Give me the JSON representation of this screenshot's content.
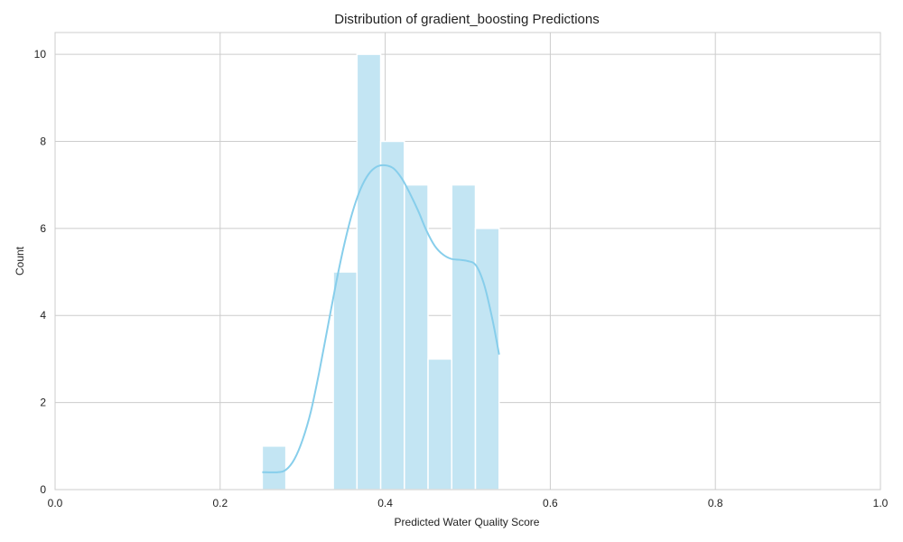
{
  "chart_data": {
    "type": "bar",
    "title": "Distribution of gradient_boosting Predictions",
    "xlabel": "Predicted Water Quality Score",
    "ylabel": "Count",
    "xlim": [
      0.0,
      1.0
    ],
    "ylim": [
      0,
      10.5
    ],
    "x_ticks": [
      "0.0",
      "0.2",
      "0.4",
      "0.6",
      "0.8",
      "1.0"
    ],
    "y_ticks": [
      "0",
      "2",
      "4",
      "6",
      "8",
      "10"
    ],
    "grid": true,
    "bins": [
      {
        "start": 0.251,
        "end": 0.2797,
        "count": 1
      },
      {
        "start": 0.2797,
        "end": 0.3084,
        "count": 0
      },
      {
        "start": 0.3084,
        "end": 0.3371,
        "count": 0
      },
      {
        "start": 0.3371,
        "end": 0.3658,
        "count": 5
      },
      {
        "start": 0.3658,
        "end": 0.3945,
        "count": 10
      },
      {
        "start": 0.3945,
        "end": 0.4232,
        "count": 8
      },
      {
        "start": 0.4232,
        "end": 0.4519,
        "count": 7
      },
      {
        "start": 0.4519,
        "end": 0.4806,
        "count": 3
      },
      {
        "start": 0.4806,
        "end": 0.5093,
        "count": 7
      },
      {
        "start": 0.5093,
        "end": 0.538,
        "count": 6
      }
    ],
    "kde": {
      "x": [
        0.251,
        0.27,
        0.28,
        0.29,
        0.3,
        0.31,
        0.32,
        0.33,
        0.34,
        0.35,
        0.36,
        0.37,
        0.38,
        0.39,
        0.4,
        0.41,
        0.42,
        0.43,
        0.44,
        0.45,
        0.46,
        0.47,
        0.48,
        0.49,
        0.5,
        0.51,
        0.52,
        0.53,
        0.538
      ],
      "y": [
        0.4,
        0.4,
        0.46,
        0.7,
        1.15,
        1.8,
        2.7,
        3.7,
        4.7,
        5.6,
        6.35,
        6.9,
        7.25,
        7.42,
        7.45,
        7.38,
        7.15,
        6.8,
        6.4,
        5.95,
        5.6,
        5.4,
        5.3,
        5.28,
        5.25,
        5.15,
        4.7,
        3.9,
        3.1
      ]
    },
    "colors": {
      "bar": "#c3e5f3",
      "kde": "#87ceeb",
      "grid": "#cccccc"
    }
  }
}
